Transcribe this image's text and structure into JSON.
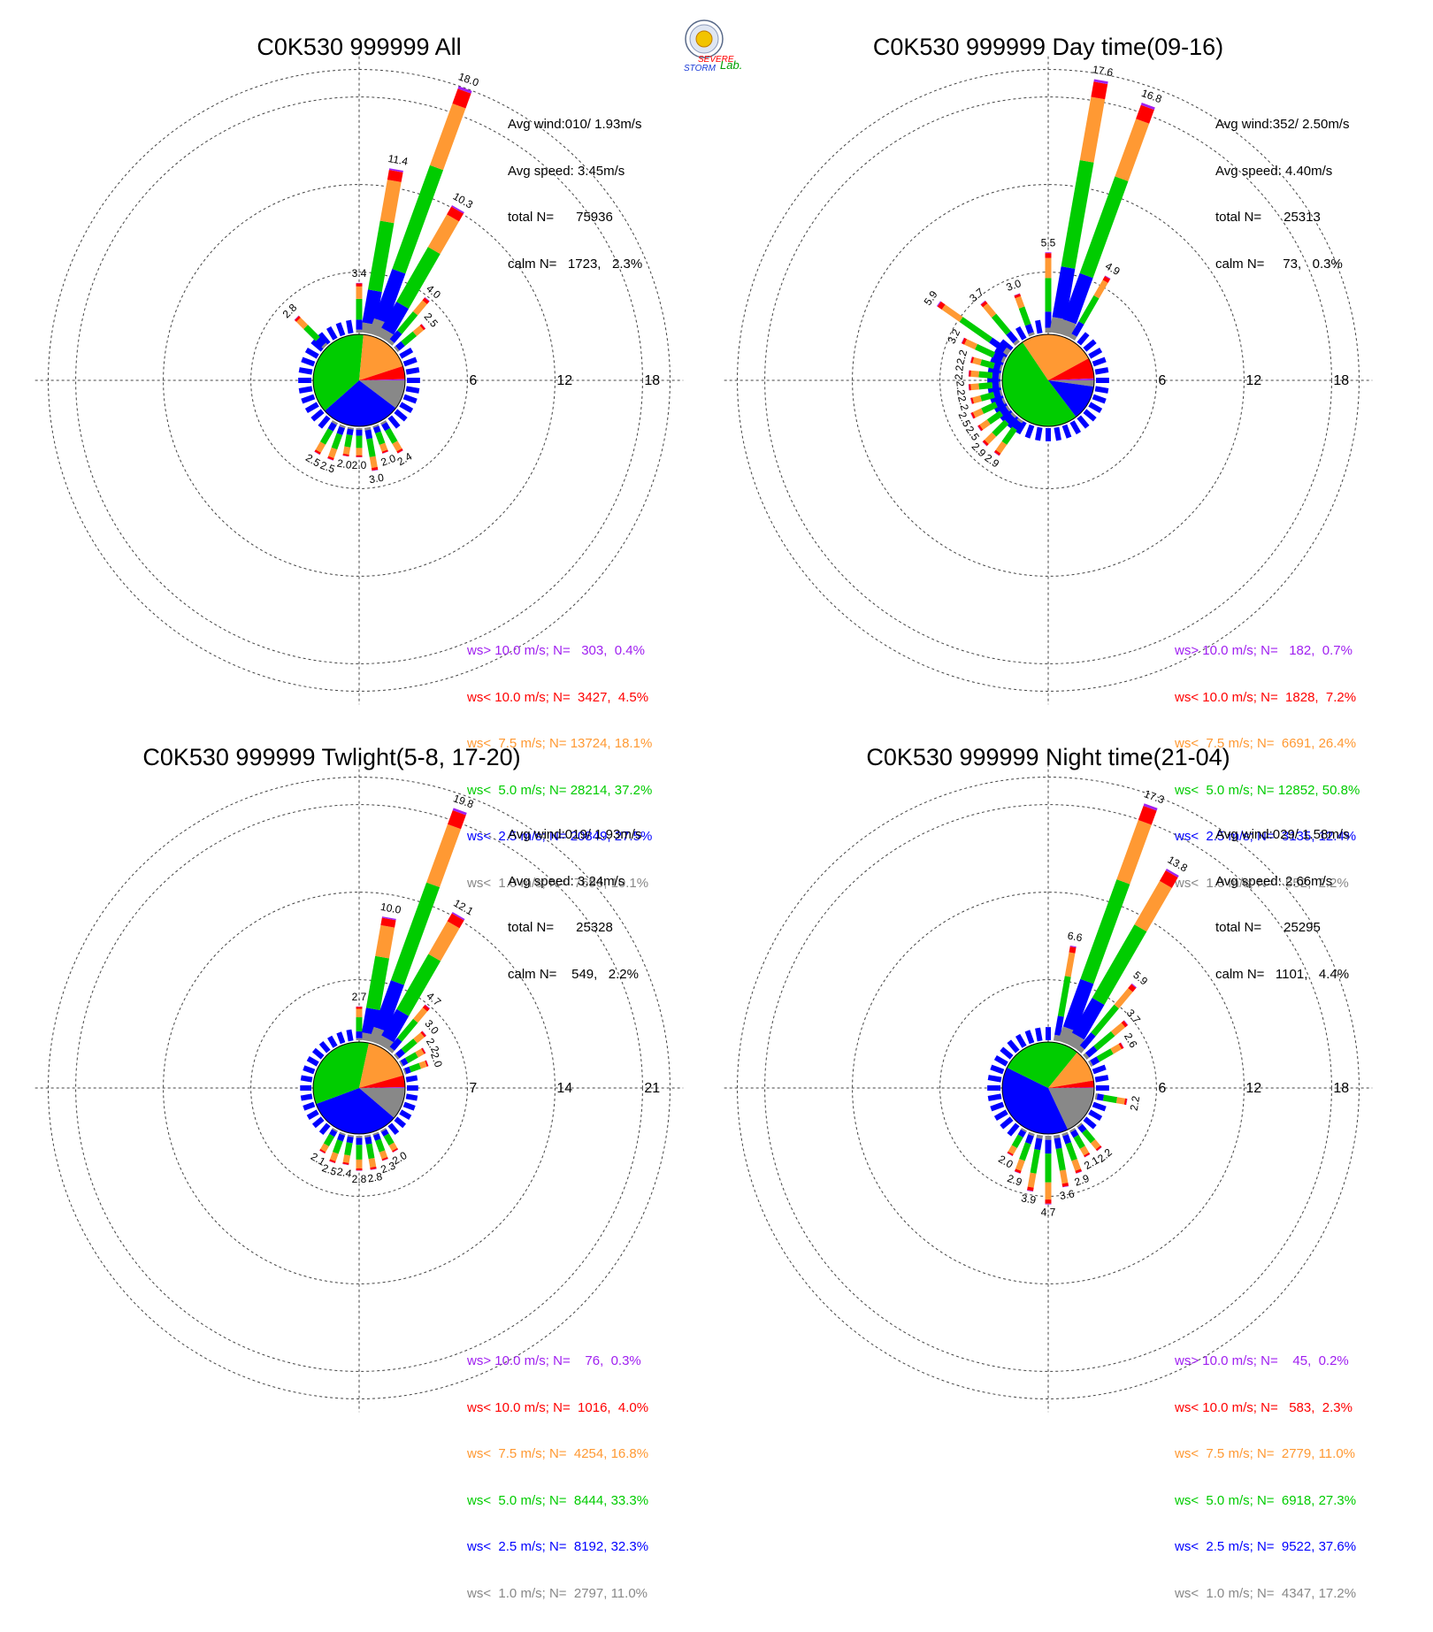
{
  "chart_data": [
    {
      "type": "wind-rose",
      "title": "C0K530 999999 All",
      "ring_labels": [
        "6",
        "12",
        "18"
      ],
      "ring_max": 18,
      "info": [
        "Avg wind:010/ 1.93m/s",
        "Avg speed: 3.45m/s",
        "total N=      75936",
        "calm N=   1723,   2.3%"
      ],
      "legend": [
        {
          "text": "ws> 10.0 m/s; N=   303,  0.4%",
          "color": "#a020f0"
        },
        {
          "text": "ws< 10.0 m/s; N=  3427,  4.5%",
          "color": "#ff0000"
        },
        {
          "text": "ws<  7.5 m/s; N= 13724, 18.1%",
          "color": "#ff9933"
        },
        {
          "text": "ws<  5.0 m/s; N= 28214, 37.2%",
          "color": "#00cc00"
        },
        {
          "text": "ws<  2.5 m/s; N= 20849, 27.5%",
          "color": "#0000ff"
        },
        {
          "text": "ws<  1.0 m/s; N=  7696, 10.1%",
          "color": "#888888"
        }
      ],
      "pie": [
        10.1,
        27.5,
        37.2,
        18.1,
        4.5,
        0.4
      ],
      "bars": [
        {
          "dir": 10,
          "total": 11.4,
          "label": "11.4"
        },
        {
          "dir": 20,
          "total": 18.0,
          "label": "18.0"
        },
        {
          "dir": 30,
          "total": 10.3,
          "label": "10.3"
        },
        {
          "dir": 40,
          "total": 4.0,
          "label": "4.0"
        },
        {
          "dir": 50,
          "total": 2.5,
          "label": "2.5"
        },
        {
          "dir": 0,
          "total": 3.4,
          "label": "3.4"
        },
        {
          "dir": 315,
          "total": 2.8,
          "label": "2.8"
        },
        {
          "dir": 150,
          "total": 2.4,
          "label": "2.4"
        },
        {
          "dir": 160,
          "total": 2.0,
          "label": "2.0"
        },
        {
          "dir": 170,
          "total": 3.0,
          "label": "3.0"
        },
        {
          "dir": 180,
          "total": 2.0,
          "label": "2.0"
        },
        {
          "dir": 190,
          "total": 2.0,
          "label": "2.0"
        },
        {
          "dir": 200,
          "total": 2.5,
          "label": "2.5"
        },
        {
          "dir": 210,
          "total": 2.5,
          "label": "2.5"
        }
      ]
    },
    {
      "type": "wind-rose",
      "title": "C0K530 999999 Day time(09-16)",
      "ring_labels": [
        "6",
        "12",
        "18"
      ],
      "ring_max": 18,
      "info": [
        "Avg wind:352/ 2.50m/s",
        "Avg speed: 4.40m/s",
        "total N=      25313",
        "calm N=     73,   0.3%"
      ],
      "legend": [
        {
          "text": "ws> 10.0 m/s; N=   182,  0.7%",
          "color": "#a020f0"
        },
        {
          "text": "ws< 10.0 m/s; N=  1828,  7.2%",
          "color": "#ff0000"
        },
        {
          "text": "ws<  7.5 m/s; N=  6691, 26.4%",
          "color": "#ff9933"
        },
        {
          "text": "ws<  5.0 m/s; N= 12852, 50.8%",
          "color": "#00cc00"
        },
        {
          "text": "ws<  2.5 m/s; N=  3135, 12.4%",
          "color": "#0000ff"
        },
        {
          "text": "ws<  1.0 m/s; N=   552,  2.2%",
          "color": "#888888"
        }
      ],
      "pie": [
        2.2,
        12.4,
        50.8,
        26.4,
        7.2,
        0.7
      ],
      "bars": [
        {
          "dir": 0,
          "total": 5.5,
          "label": "5.5"
        },
        {
          "dir": 10,
          "total": 17.6,
          "label": "17.6"
        },
        {
          "dir": 20,
          "total": 16.8,
          "label": "16.8"
        },
        {
          "dir": 30,
          "total": 4.9,
          "label": "4.9"
        },
        {
          "dir": 340,
          "total": 3.0,
          "label": "3.0"
        },
        {
          "dir": 320,
          "total": 3.7,
          "label": "3.7"
        },
        {
          "dir": 305,
          "total": 5.9,
          "label": "5.9"
        },
        {
          "dir": 295,
          "total": 3.2,
          "label": "3.2"
        },
        {
          "dir": 285,
          "total": 2.2,
          "label": "2.2"
        },
        {
          "dir": 275,
          "total": 2.2,
          "label": "2.2"
        },
        {
          "dir": 265,
          "total": 2.2,
          "label": "2.2"
        },
        {
          "dir": 255,
          "total": 2.2,
          "label": "2.2"
        },
        {
          "dir": 245,
          "total": 2.5,
          "label": "2.5"
        },
        {
          "dir": 235,
          "total": 2.5,
          "label": "2.5"
        },
        {
          "dir": 225,
          "total": 2.9,
          "label": "2.9"
        },
        {
          "dir": 215,
          "total": 2.9,
          "label": "2.9"
        }
      ]
    },
    {
      "type": "wind-rose",
      "title": "C0K530 999999 Twlight(5-8, 17-20)",
      "ring_labels": [
        "7",
        "14",
        "21"
      ],
      "ring_max": 21,
      "info": [
        "Avg wind:019/ 1.93m/s",
        "Avg speed: 3.24m/s",
        "total N=      25328",
        "calm N=    549,   2.2%"
      ],
      "legend": [
        {
          "text": "ws> 10.0 m/s; N=    76,  0.3%",
          "color": "#a020f0"
        },
        {
          "text": "ws< 10.0 m/s; N=  1016,  4.0%",
          "color": "#ff0000"
        },
        {
          "text": "ws<  7.5 m/s; N=  4254, 16.8%",
          "color": "#ff9933"
        },
        {
          "text": "ws<  5.0 m/s; N=  8444, 33.3%",
          "color": "#00cc00"
        },
        {
          "text": "ws<  2.5 m/s; N=  8192, 32.3%",
          "color": "#0000ff"
        },
        {
          "text": "ws<  1.0 m/s; N=  2797, 11.0%",
          "color": "#888888"
        }
      ],
      "pie": [
        11.0,
        32.3,
        33.3,
        16.8,
        4.0,
        0.3
      ],
      "bars": [
        {
          "dir": 10,
          "total": 10.0,
          "label": "10.0"
        },
        {
          "dir": 20,
          "total": 19.8,
          "label": "19.8"
        },
        {
          "dir": 30,
          "total": 12.1,
          "label": "12.1"
        },
        {
          "dir": 40,
          "total": 4.7,
          "label": "4.7"
        },
        {
          "dir": 50,
          "total": 3.0,
          "label": "3.0"
        },
        {
          "dir": 60,
          "total": 2.2,
          "label": "2.2"
        },
        {
          "dir": 70,
          "total": 2.0,
          "label": "2.0"
        },
        {
          "dir": 0,
          "total": 2.7,
          "label": "2.7"
        },
        {
          "dir": 150,
          "total": 2.0,
          "label": "2.0"
        },
        {
          "dir": 160,
          "total": 2.3,
          "label": "2.3"
        },
        {
          "dir": 170,
          "total": 2.8,
          "label": "2.8"
        },
        {
          "dir": 180,
          "total": 2.8,
          "label": "2.8"
        },
        {
          "dir": 190,
          "total": 2.4,
          "label": "2.4"
        },
        {
          "dir": 200,
          "total": 2.5,
          "label": "2.5"
        },
        {
          "dir": 210,
          "total": 2.1,
          "label": "2.1"
        }
      ]
    },
    {
      "type": "wind-rose",
      "title": "C0K530 999999 Night time(21-04)",
      "ring_labels": [
        "6",
        "12",
        "18"
      ],
      "ring_max": 18,
      "info": [
        "Avg wind:029/ 1.58m/s",
        "Avg speed: 2.66m/s",
        "total N=      25295",
        "calm N=   1101,   4.4%"
      ],
      "legend": [
        {
          "text": "ws> 10.0 m/s; N=    45,  0.2%",
          "color": "#a020f0"
        },
        {
          "text": "ws< 10.0 m/s; N=   583,  2.3%",
          "color": "#ff0000"
        },
        {
          "text": "ws<  7.5 m/s; N=  2779, 11.0%",
          "color": "#ff9933"
        },
        {
          "text": "ws<  5.0 m/s; N=  6918, 27.3%",
          "color": "#00cc00"
        },
        {
          "text": "ws<  2.5 m/s; N=  9522, 37.6%",
          "color": "#0000ff"
        },
        {
          "text": "ws<  1.0 m/s; N=  4347, 17.2%",
          "color": "#888888"
        }
      ],
      "pie": [
        17.2,
        37.6,
        27.3,
        11.0,
        2.3,
        0.2
      ],
      "bars": [
        {
          "dir": 10,
          "total": 6.6,
          "label": "6.6"
        },
        {
          "dir": 20,
          "total": 17.3,
          "label": "17.3"
        },
        {
          "dir": 30,
          "total": 13.8,
          "label": "13.8"
        },
        {
          "dir": 40,
          "total": 5.9,
          "label": "5.9"
        },
        {
          "dir": 50,
          "total": 3.7,
          "label": "3.7"
        },
        {
          "dir": 60,
          "total": 2.6,
          "label": "2.6"
        },
        {
          "dir": 100,
          "total": 2.2,
          "label": "2.2"
        },
        {
          "dir": 140,
          "total": 2.2,
          "label": "2.2"
        },
        {
          "dir": 150,
          "total": 2.1,
          "label": "2.1"
        },
        {
          "dir": 160,
          "total": 2.9,
          "label": "2.9"
        },
        {
          "dir": 170,
          "total": 3.6,
          "label": "3.6"
        },
        {
          "dir": 180,
          "total": 4.7,
          "label": "4.7"
        },
        {
          "dir": 190,
          "total": 3.9,
          "label": "3.9"
        },
        {
          "dir": 200,
          "total": 2.9,
          "label": "2.9"
        },
        {
          "dir": 210,
          "total": 2.0,
          "label": "2.0"
        }
      ]
    }
  ],
  "logo": {
    "text1": "SEVERE",
    "text2": "STORM",
    "text3": "Lab."
  }
}
